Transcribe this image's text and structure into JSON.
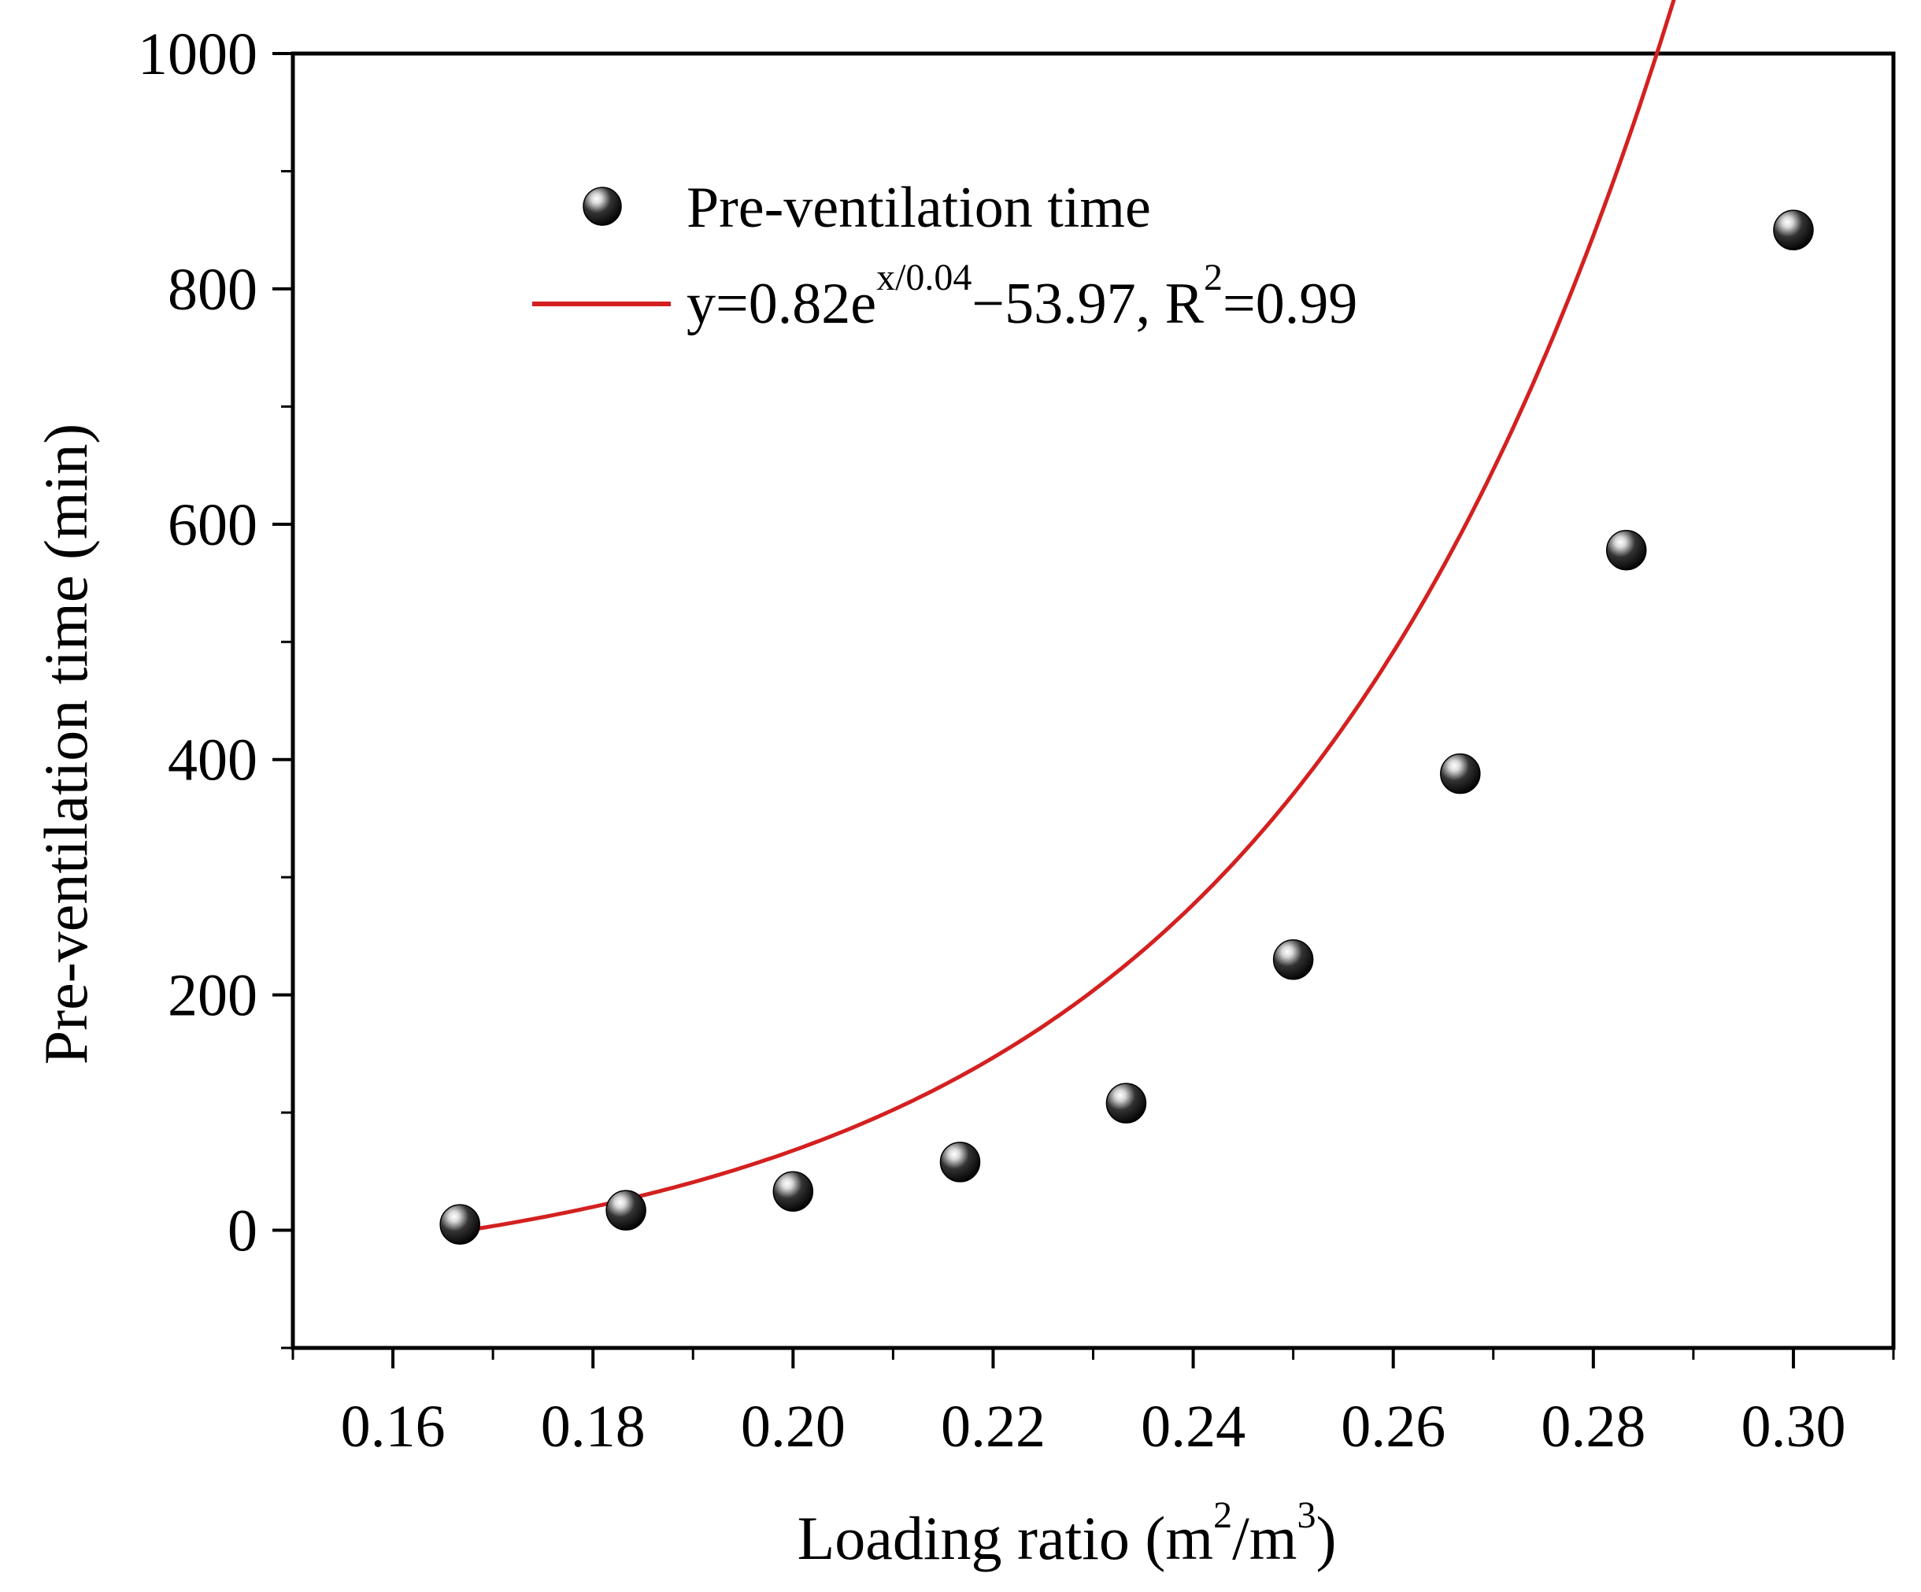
{
  "chart_data": {
    "type": "scatter",
    "xlabel": {
      "main": "Loading ratio (m",
      "sup1": "2",
      "mid": "/m",
      "sup2": "3",
      "end": ")"
    },
    "ylabel": "Pre-ventilation time (min)",
    "xlim": [
      0.15,
      0.31
    ],
    "ylim": [
      -100,
      1000
    ],
    "x_ticks": [
      0.16,
      0.18,
      0.2,
      0.22,
      0.24,
      0.26,
      0.28,
      0.3
    ],
    "x_tick_labels": [
      "0.16",
      "0.18",
      "0.20",
      "0.22",
      "0.24",
      "0.26",
      "0.28",
      "0.30"
    ],
    "y_ticks": [
      0,
      200,
      400,
      600,
      800,
      1000
    ],
    "y_tick_labels": [
      "0",
      "200",
      "400",
      "600",
      "800",
      "1000"
    ],
    "legend": {
      "placement": "top-left",
      "points_label": "Pre-ventilation time",
      "fit_label": {
        "pre": "y=0.82e",
        "sup": "x/0.04",
        "mid": "−53.97, R",
        "sup2": "2",
        "post": "=0.99"
      }
    },
    "series": [
      {
        "name": "Pre-ventilation time",
        "type": "scatter",
        "x": [
          0.1667,
          0.1833,
          0.2,
          0.2167,
          0.2333,
          0.25,
          0.2667,
          0.2833,
          0.3
        ],
        "y": [
          5,
          17,
          33,
          58,
          108,
          230,
          388,
          578,
          850
        ]
      },
      {
        "name": "fit",
        "type": "line",
        "color": "#d42020",
        "a": 0.82,
        "b": 0.04,
        "c": -53.97,
        "x_range": [
          0.1667,
          0.3
        ]
      }
    ]
  }
}
